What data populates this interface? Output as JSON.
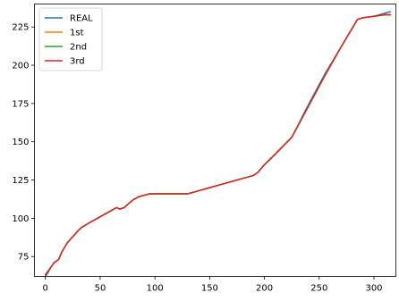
{
  "chart_data": {
    "type": "line",
    "title": "",
    "xlabel": "",
    "ylabel": "",
    "xlim": [
      -10,
      320
    ],
    "ylim": [
      62,
      240
    ],
    "xticks": [
      0,
      50,
      100,
      150,
      200,
      250,
      300
    ],
    "yticks": [
      75,
      100,
      125,
      150,
      175,
      200,
      225
    ],
    "grid": false,
    "legend_position": "upper-left",
    "series": [
      {
        "name": "REAL",
        "color": "#1f77b4",
        "x": [
          0,
          2,
          5,
          8,
          12,
          15,
          20,
          25,
          30,
          33,
          40,
          50,
          60,
          65,
          68,
          72,
          75,
          80,
          85,
          90,
          95,
          100,
          110,
          120,
          130,
          140,
          150,
          160,
          170,
          180,
          190,
          194,
          200,
          210,
          225,
          240,
          255,
          270,
          285,
          290,
          300,
          310,
          315
        ],
        "y": [
          62,
          64,
          68,
          71,
          73,
          78,
          84,
          88,
          92,
          94,
          97,
          101,
          105,
          107,
          106,
          107,
          109,
          112,
          114,
          115,
          116,
          116,
          116,
          116,
          116,
          118,
          120,
          122,
          124,
          126,
          128,
          130,
          135,
          142,
          153,
          174,
          194,
          212,
          230,
          231,
          232,
          234,
          235
        ]
      },
      {
        "name": "1st",
        "color": "#ff7f0e",
        "x": [
          0,
          2,
          5,
          8,
          12,
          15,
          20,
          25,
          30,
          33,
          40,
          50,
          60,
          65,
          68,
          72,
          75,
          80,
          85,
          90,
          95,
          100,
          110,
          120,
          130,
          140,
          150,
          160,
          170,
          180,
          190,
          194,
          200,
          210,
          225,
          240,
          255,
          270,
          285,
          290,
          300,
          310,
          315
        ],
        "y": [
          63,
          65,
          68,
          71,
          73,
          78,
          84,
          88,
          92,
          94,
          97,
          101,
          105,
          107,
          106,
          107,
          109,
          112,
          114,
          115,
          116,
          116,
          116,
          116,
          116,
          118,
          120,
          122,
          124,
          126,
          128,
          130,
          135,
          142,
          153,
          173,
          193,
          212,
          230,
          231,
          232,
          233,
          233
        ]
      },
      {
        "name": "2nd",
        "color": "#2ca02c",
        "x": [
          0,
          2,
          5,
          8,
          12,
          15,
          20,
          25,
          30,
          33,
          40,
          50,
          60,
          65,
          68,
          72,
          75,
          80,
          85,
          90,
          95,
          100,
          110,
          120,
          130,
          140,
          150,
          160,
          170,
          180,
          190,
          194,
          200,
          210,
          225,
          240,
          255,
          270,
          285,
          290,
          300,
          310,
          315
        ],
        "y": [
          63,
          65,
          68,
          71,
          73,
          78,
          84,
          88,
          92,
          94,
          97,
          101,
          105,
          107,
          106,
          107,
          109,
          112,
          114,
          115,
          116,
          116,
          116,
          116,
          116,
          118,
          120,
          122,
          124,
          126,
          128,
          130,
          135,
          142,
          153,
          173,
          193,
          212,
          230,
          231,
          232,
          233,
          233
        ]
      },
      {
        "name": "3rd",
        "color": "#d62728",
        "x": [
          0,
          2,
          5,
          8,
          12,
          15,
          20,
          25,
          30,
          33,
          40,
          50,
          60,
          65,
          68,
          72,
          75,
          80,
          85,
          90,
          95,
          100,
          110,
          120,
          130,
          140,
          150,
          160,
          170,
          180,
          190,
          194,
          200,
          210,
          225,
          240,
          255,
          270,
          285,
          290,
          300,
          310,
          315
        ],
        "y": [
          63,
          65,
          68,
          71,
          73,
          78,
          84,
          88,
          92,
          94,
          97,
          101,
          105,
          107,
          106,
          107,
          109,
          112,
          114,
          115,
          116,
          116,
          116,
          116,
          116,
          118,
          120,
          122,
          124,
          126,
          128,
          130,
          135,
          142,
          153,
          173,
          193,
          212,
          230,
          231,
          232,
          233,
          233
        ]
      }
    ]
  }
}
